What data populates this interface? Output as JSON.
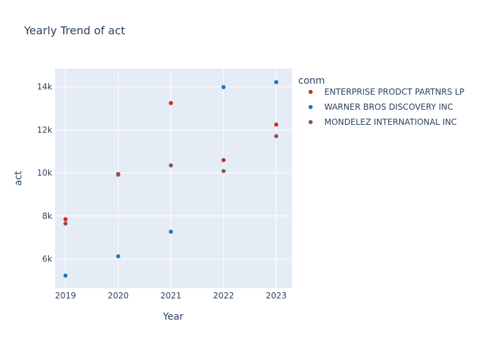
{
  "chart_data": {
    "type": "scatter",
    "title": "Yearly Trend of act",
    "xlabel": "Year",
    "ylabel": "act",
    "legend_title": "conm",
    "legend_position": "right",
    "grid": true,
    "x": [
      2019,
      2020,
      2021,
      2022,
      2023
    ],
    "x_ticks": [
      "2019",
      "2020",
      "2021",
      "2022",
      "2023"
    ],
    "y_ticks": [
      6000,
      8000,
      10000,
      12000,
      14000
    ],
    "y_tick_labels": [
      "6k",
      "8k",
      "10k",
      "12k",
      "14k"
    ],
    "xlim": [
      2018.8,
      2023.3
    ],
    "ylim": [
      4650,
      14850
    ],
    "series": [
      {
        "name": "ENTERPRISE PRODCT PARTNRS LP",
        "color": "#d62728",
        "values": [
          7850,
          9950,
          13250,
          10600,
          12250
        ]
      },
      {
        "name": "WARNER BROS DISCOVERY INC",
        "color": "#1f77b4",
        "values": [
          5230,
          6130,
          7270,
          13990,
          14220
        ]
      },
      {
        "name": "MONDELEZ INTERNATIONAL INC",
        "color": "#8c564b",
        "values": [
          7650,
          9920,
          10350,
          10090,
          11710
        ]
      }
    ]
  }
}
